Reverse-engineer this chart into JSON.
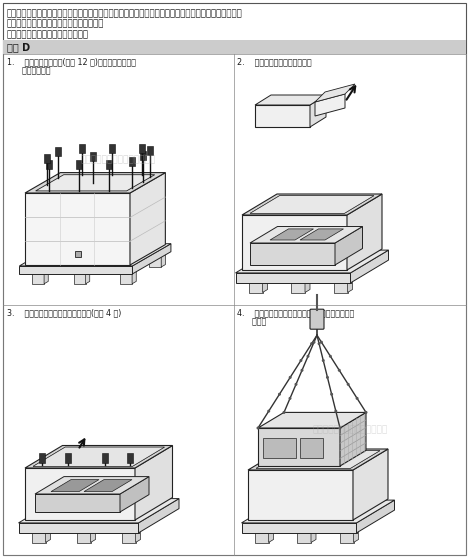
{
  "bg_color": "#ffffff",
  "text_color": "#1a1a1a",
  "line_color": "#222222",
  "fill_front": "#f0f0f0",
  "fill_top": "#e0e0e0",
  "fill_right": "#d0d0d0",
  "fill_inner": "#c8c8c8",
  "intro_line1": "为了交流马达驱动器在安装前功能正常无损毁之虞，搬运或储存时，应妥善放置在原有包装内，并确保周",
  "intro_line2": "遭的环境条件能符合此手册内提供之规格。",
  "sub_text": "外包装为木箱包装，拆除方式如图：",
  "frame_label": "框架 D",
  "watermark": "佛山苏迪尔自动化科技有限公司",
  "step1": "1.    将木箱上盖的螺丝(共有 12 颗)松开拆下后，开启",
  "step1b": "      木箱的上盖。",
  "step2": "2.    将木箱内的泡棉及手册取出",
  "step3": "3.    先将包装袋打开后，将螺丝松开(共有 4 颗)",
  "step4": "4.    用叉钩穿过驱动器上的吊孔后，吊起后即可装配",
  "step4b": "      机台。",
  "fig_width": 4.69,
  "fig_height": 5.58,
  "dpi": 100
}
